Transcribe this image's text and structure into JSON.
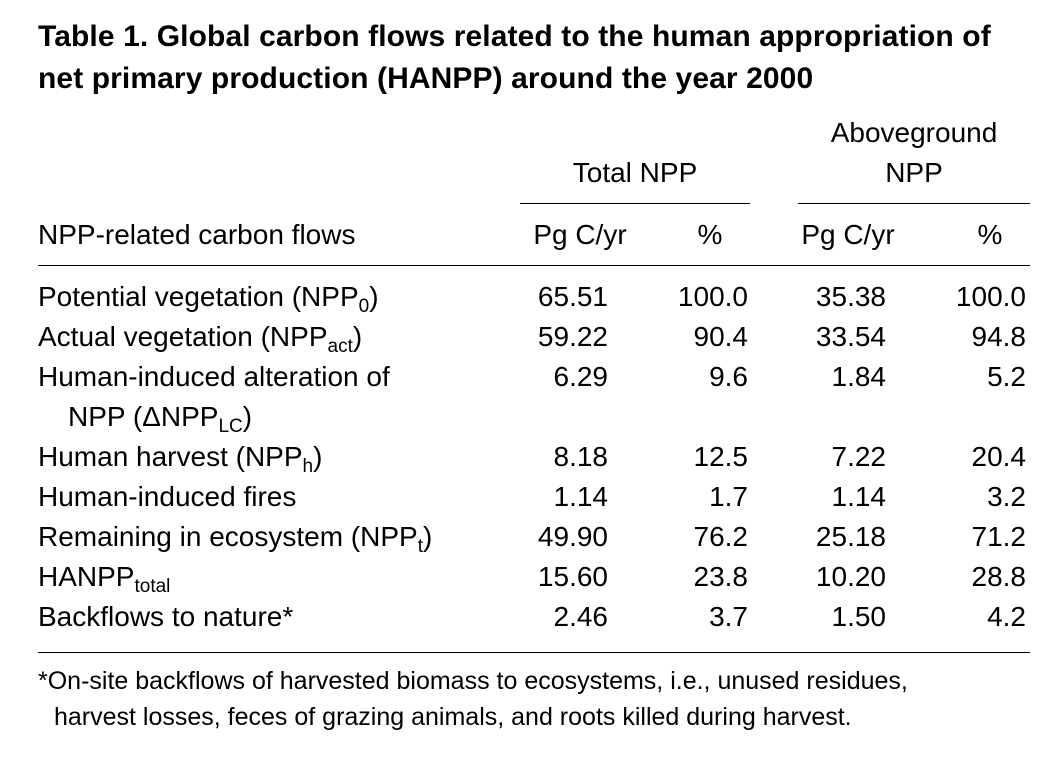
{
  "title": "Table 1. Global carbon flows related to the human appropriation of net primary production (HANPP) around the year 2000",
  "header": {
    "group1": "Total NPP",
    "group2_line1": "Aboveground",
    "group2_line2": "NPP",
    "col_label": "NPP-related carbon flows",
    "unit": "Pg C/yr",
    "percent": "%"
  },
  "rows": [
    {
      "label": "Potential vegetation (NPP",
      "sub": "0",
      "tail": ")",
      "total": "65.51",
      "total_pct": "100.0",
      "above": "35.38",
      "above_pct": "100.0"
    },
    {
      "label": "Actual vegetation (NPP",
      "sub": "act",
      "tail": ")",
      "total": "59.22",
      "total_pct": "90.4",
      "above": "33.54",
      "above_pct": "94.8"
    },
    {
      "label": "Human-induced alteration of",
      "label2": "NPP (ΔNPP",
      "sub": "LC",
      "tail": ")",
      "total": "6.29",
      "total_pct": "9.6",
      "above": "1.84",
      "above_pct": "5.2"
    },
    {
      "label": "Human harvest (NPP",
      "sub": "h",
      "tail": ")",
      "total": "8.18",
      "total_pct": "12.5",
      "above": "7.22",
      "above_pct": "20.4"
    },
    {
      "label": "Human-induced fires",
      "sub": "",
      "tail": "",
      "total": "1.14",
      "total_pct": "1.7",
      "above": "1.14",
      "above_pct": "3.2"
    },
    {
      "label": "Remaining in ecosystem (NPP",
      "sub": "t",
      "tail": ")",
      "total": "49.90",
      "total_pct": "76.2",
      "above": "25.18",
      "above_pct": "71.2"
    },
    {
      "label": "HANPP",
      "sub": "total",
      "tail": "",
      "total": "15.60",
      "total_pct": "23.8",
      "above": "10.20",
      "above_pct": "28.8"
    },
    {
      "label": "Backflows to nature*",
      "sub": "",
      "tail": "",
      "total": "2.46",
      "total_pct": "3.7",
      "above": "1.50",
      "above_pct": "4.2"
    }
  ],
  "footnote": {
    "line1": "*On-site backflows of harvested biomass to ecosystems, i.e., unused residues,",
    "line2": "harvest losses, feces of grazing animals, and roots killed during harvest."
  }
}
